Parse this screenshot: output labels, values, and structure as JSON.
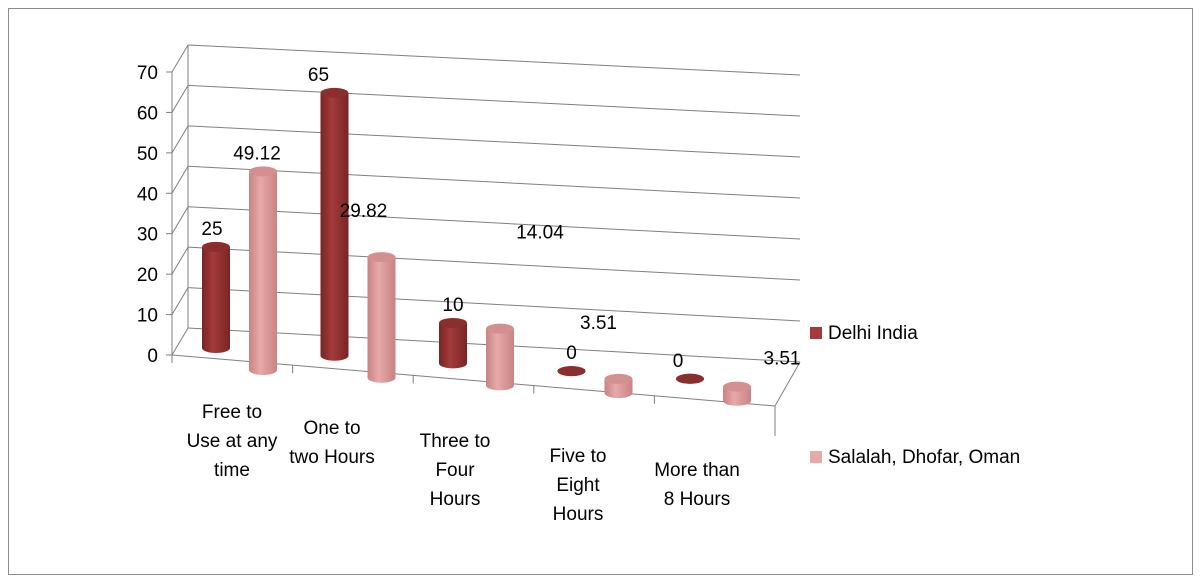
{
  "chart_data": {
    "type": "bar",
    "style": "3d-cylinder",
    "categories": [
      [
        "Free to",
        "Use at any",
        "time"
      ],
      [
        "One to",
        "two Hours"
      ],
      [
        "Three to",
        "Four",
        "Hours"
      ],
      [
        "Five to",
        "Eight",
        "Hours"
      ],
      [
        "More than",
        "8 Hours"
      ]
    ],
    "series": [
      {
        "name": "Delhi India",
        "values": [
          25,
          65,
          10,
          0,
          0
        ],
        "labels": [
          "25",
          "65",
          "10",
          "0",
          "0"
        ]
      },
      {
        "name": "Salalah, Dhofar, Oman",
        "values": [
          49.12,
          29.82,
          14.04,
          3.51,
          3.51
        ],
        "labels": [
          "49.12",
          "29.82",
          "14.04",
          "3.51",
          "3.51"
        ]
      }
    ],
    "yticks": [
      "0",
      "10",
      "20",
      "30",
      "40",
      "50",
      "60",
      "70"
    ],
    "ylim": [
      0,
      70
    ],
    "grid": true,
    "legend_position": "right",
    "colors": {
      "delhi": "#a33b3b",
      "delhi_top": "#8a2e2e",
      "oman": "#e6a9a9",
      "oman_top": "#d49090",
      "grid": "#7f7f7f"
    }
  }
}
